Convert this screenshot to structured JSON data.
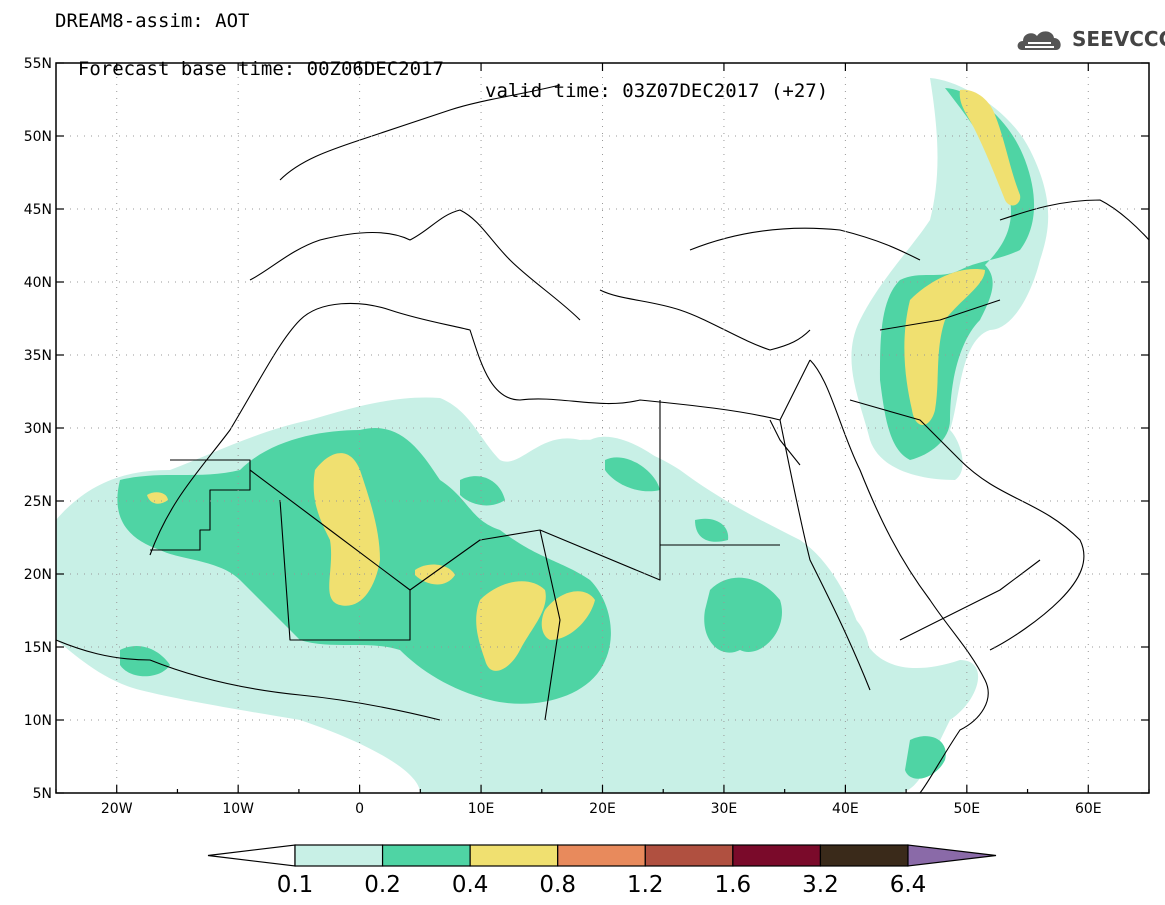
{
  "header": {
    "title_line": "DREAM8-assim: AOT",
    "base_time": "Forecast base time: 00Z06DEC2017",
    "valid_time": "valid time: 03Z07DEC2017 (+27)"
  },
  "logo": {
    "text": "SEEVCCC",
    "icon": "cloud-icon"
  },
  "map": {
    "lon_labels": [
      "20W",
      "10W",
      "0",
      "10E",
      "20E",
      "30E",
      "40E",
      "50E",
      "60E"
    ],
    "lat_labels": [
      "55N",
      "50N",
      "45N",
      "40N",
      "35N",
      "30N",
      "25N",
      "20N",
      "15N",
      "10N",
      "5N"
    ],
    "lon_range": [
      -25,
      65
    ],
    "lat_range": [
      5,
      55
    ],
    "grid": "dotted"
  },
  "colorbar": {
    "levels": [
      "0.1",
      "0.2",
      "0.4",
      "0.8",
      "1.2",
      "1.6",
      "3.2",
      "6.4"
    ],
    "colors": [
      "#c8f0e6",
      "#4fd4a4",
      "#f0e070",
      "#e88a5c",
      "#b05040",
      "#7a0a2a",
      "#3a2a1a",
      "#8a6aa8"
    ],
    "under_color": "#ffffff"
  }
}
